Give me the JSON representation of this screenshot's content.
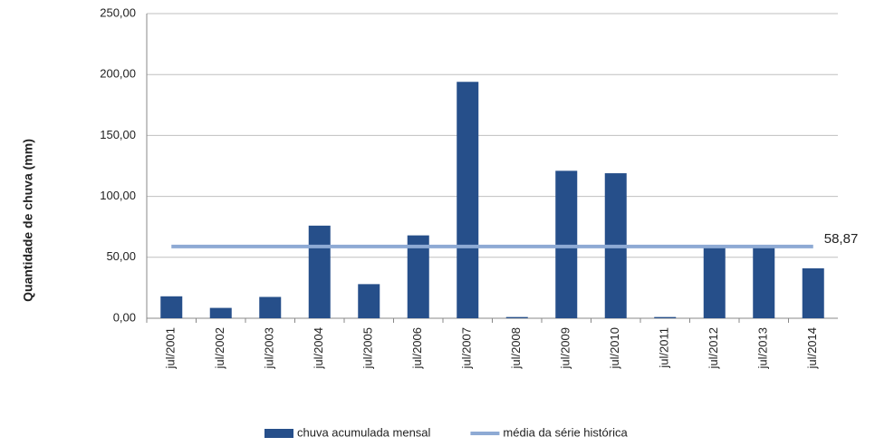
{
  "chart_data": {
    "type": "bar",
    "y_label": "Quantidade de chuva (mm)",
    "categories": [
      "jul/2001",
      "jul/2002",
      "jul/2003",
      "jul/2004",
      "jul/2005",
      "jul/2006",
      "jul/2007",
      "jul/2008",
      "jul/2009",
      "jul/2010",
      "jul/2011",
      "jul/2012",
      "jul/2013",
      "jul/2014"
    ],
    "series": [
      {
        "name": "chuva acumulada mensal",
        "type": "bar",
        "color": "#264f8a",
        "values": [
          18,
          8.5,
          17.5,
          76,
          28,
          68,
          194,
          1,
          121,
          119,
          1,
          59,
          59,
          41
        ]
      },
      {
        "name": "média da série histórica",
        "type": "line",
        "color": "#8eaad4",
        "values": [
          58.87,
          58.87,
          58.87,
          58.87,
          58.87,
          58.87,
          58.87,
          58.87,
          58.87,
          58.87,
          58.87,
          58.87,
          58.87,
          58.87
        ],
        "value_labels": [
          null,
          null,
          null,
          null,
          null,
          null,
          null,
          null,
          null,
          null,
          null,
          null,
          null,
          "58,87"
        ]
      }
    ],
    "ylim": [
      0,
      250
    ],
    "yticks": [
      {
        "value": 0,
        "label": "0,00"
      },
      {
        "value": 50,
        "label": "50,00"
      },
      {
        "value": 100,
        "label": "100,00"
      },
      {
        "value": 150,
        "label": "150,00"
      },
      {
        "value": 200,
        "label": "200,00"
      },
      {
        "value": 250,
        "label": "250,00"
      }
    ],
    "grid": true,
    "legend": "bottom"
  }
}
